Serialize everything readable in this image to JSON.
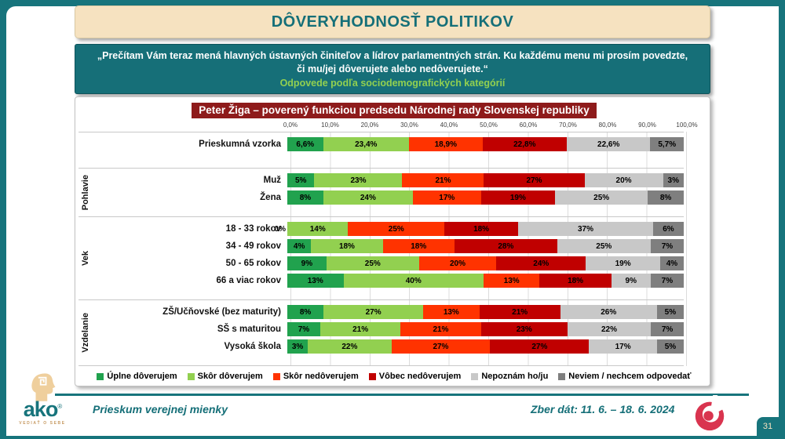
{
  "header": {
    "title": "DÔVERYHODNOSŤ POLITIKOV"
  },
  "banner": {
    "line1": "„Prečítam Vám teraz mená hlavných ústavných činiteľov a lídrov parlamentných strán. Ku každému menu mi prosím povedzte, či mu/jej dôverujete alebo nedôverujete.“",
    "line2": "Odpovede podľa sociodemografických kategórií"
  },
  "chart_data": {
    "type": "bar",
    "stacked": true,
    "orientation": "horizontal",
    "title": "Peter Žiga – poverený funkciou predsedu Národnej rady Slovenskej republiky",
    "xlim": [
      0,
      100
    ],
    "x_ticks": [
      "0,0%",
      "10,0%",
      "20,0%",
      "30,0%",
      "40,0%",
      "50,0%",
      "60,0%",
      "70,0%",
      "80,0%",
      "90,0%",
      "100,0%"
    ],
    "grid": true,
    "legend_position": "bottom",
    "legend": [
      {
        "label": "Úplne dôverujem",
        "color": "#21A24E"
      },
      {
        "label": "Skôr dôverujem",
        "color": "#92D050"
      },
      {
        "label": "Skôr nedôverujem",
        "color": "#FF3300"
      },
      {
        "label": "Vôbec nedôverujem",
        "color": "#C00000"
      },
      {
        "label": "Nepoznám ho/ju",
        "color": "#C8C8C8"
      },
      {
        "label": "Neviem / nechcem odpovedať",
        "color": "#7F7F7F"
      }
    ],
    "groups": [
      {
        "label": "",
        "rows": [
          {
            "label": "Prieskumná vzorka",
            "values": [
              6.6,
              23.4,
              18.9,
              22.8,
              22.6,
              5.7
            ],
            "labels": [
              "6,6%",
              "23,4%",
              "18,9%",
              "22,8%",
              "22,6%",
              "5,7%"
            ]
          }
        ]
      },
      {
        "label": "Pohlavie",
        "rows": [
          {
            "label": "Muž",
            "values": [
              5,
              23,
              21,
              27,
              20,
              3
            ],
            "labels": [
              "5%",
              "23%",
              "21%",
              "27%",
              "20%",
              "3%"
            ]
          },
          {
            "label": "Žena",
            "values": [
              8,
              24,
              17,
              19,
              25,
              8
            ],
            "labels": [
              "8%",
              "24%",
              "17%",
              "19%",
              "25%",
              "8%"
            ]
          }
        ]
      },
      {
        "label": "Vek",
        "rows": [
          {
            "label": "18 - 33 rokov",
            "values": [
              0,
              14,
              25,
              18,
              37,
              6
            ],
            "labels": [
              "0%",
              "14%",
              "25%",
              "18%",
              "37%",
              "6%"
            ]
          },
          {
            "label": "34 - 49 rokov",
            "values": [
              4,
              18,
              18,
              28,
              25,
              7
            ],
            "labels": [
              "4%",
              "18%",
              "18%",
              "28%",
              "25%",
              "7%"
            ]
          },
          {
            "label": "50 - 65 rokov",
            "values": [
              9,
              25,
              20,
              24,
              19,
              4
            ],
            "labels": [
              "9%",
              "25%",
              "20%",
              "24%",
              "19%",
              "4%"
            ]
          },
          {
            "label": "66 a viac rokov",
            "values": [
              13,
              40,
              13,
              18,
              9,
              7
            ],
            "labels": [
              "13%",
              "40%",
              "13%",
              "18%",
              "9%",
              "7%"
            ]
          }
        ]
      },
      {
        "label": "Vzdelanie",
        "rows": [
          {
            "label": "ZŠ/Učňovské (bez maturity)",
            "values": [
              8,
              27,
              13,
              21,
              26,
              5
            ],
            "labels": [
              "8%",
              "27%",
              "13%",
              "21%",
              "26%",
              "5%"
            ]
          },
          {
            "label": "SŠ s maturitou",
            "values": [
              7,
              21,
              21,
              23,
              22,
              7
            ],
            "labels": [
              "7%",
              "21%",
              "21%",
              "23%",
              "22%",
              "7%"
            ]
          },
          {
            "label": "Vysoká škola",
            "values": [
              3,
              22,
              27,
              27,
              17,
              5
            ],
            "labels": [
              "3%",
              "22%",
              "27%",
              "27%",
              "17%",
              "5%"
            ]
          }
        ]
      }
    ]
  },
  "footer": {
    "left": "Prieskum verejnej mienky",
    "right": "Zber dát: 11. 6. – 18. 6. 2024",
    "logo_text": "ako",
    "logo_tagline": "VEDIAŤ O SEBE",
    "page_number": "31"
  },
  "colors": {
    "frame_teal": "#17747C",
    "banner_teal": "#166F78",
    "cream": "#F6E2C0",
    "chart_title_bg": "#8E1B1B",
    "banner_green": "#92D050",
    "swirl_red": "#D9344F",
    "logo_tan": "#EFCF9D"
  }
}
